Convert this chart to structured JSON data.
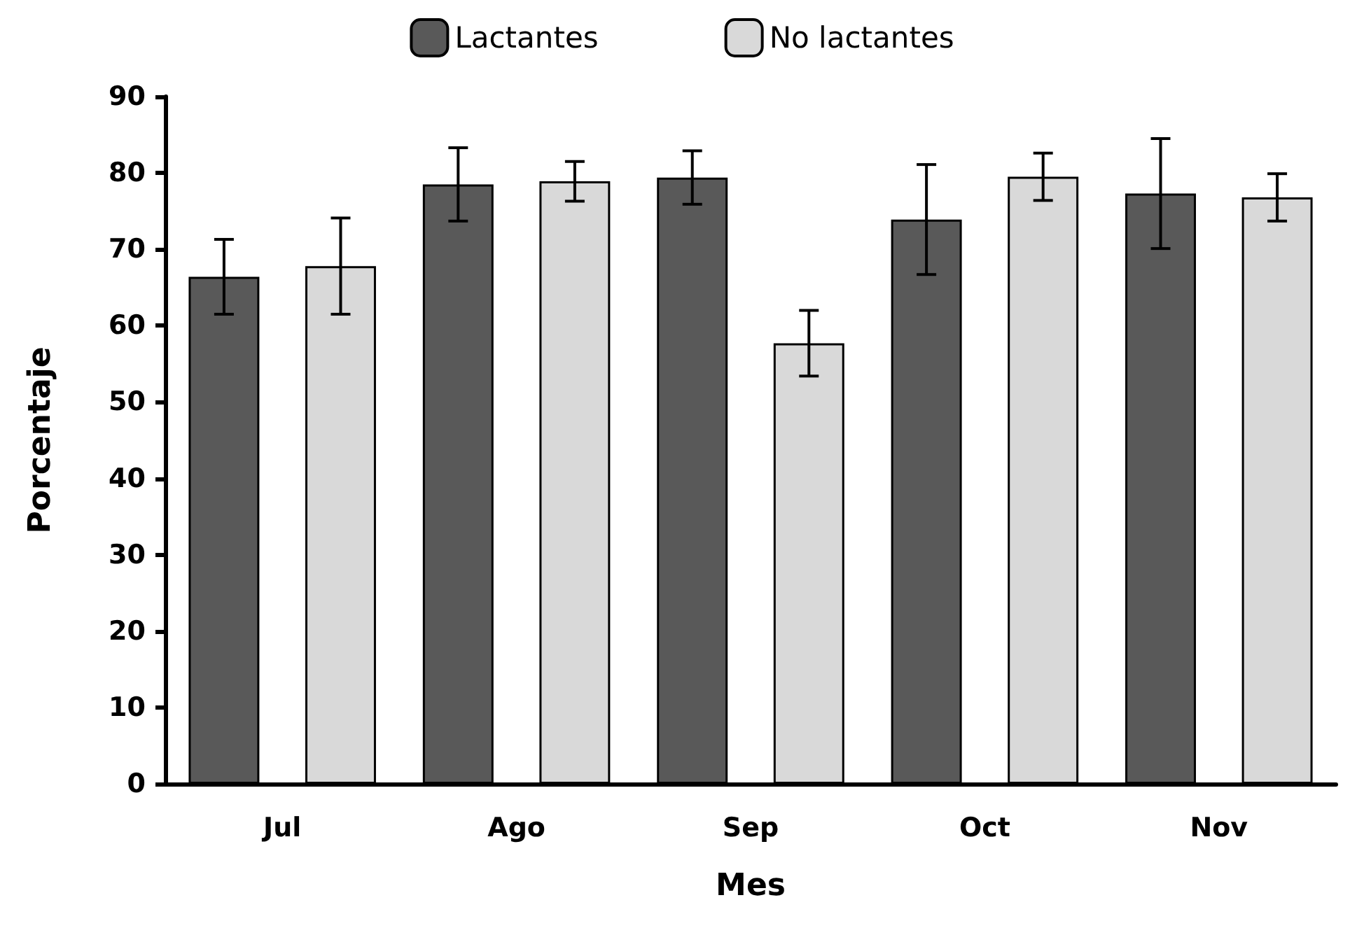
{
  "chart_data": {
    "type": "bar",
    "xlabel": "Mes",
    "ylabel": "Porcentaje",
    "categories": [
      "Jul",
      "Ago",
      "Sep",
      "Oct",
      "Nov"
    ],
    "series": [
      {
        "name": "Lactantes",
        "color": "#595959",
        "values": [
          66.4,
          78.5,
          79.4,
          73.9,
          77.3
        ],
        "errors": [
          4.9,
          4.8,
          3.5,
          7.2,
          7.2
        ]
      },
      {
        "name": "No lactantes",
        "color": "#d9d9d9",
        "values": [
          67.8,
          78.9,
          57.7,
          79.5,
          76.8
        ],
        "errors": [
          6.3,
          2.6,
          4.3,
          3.1,
          3.1
        ]
      }
    ],
    "ylim": [
      0,
      90
    ],
    "yticks": [
      0,
      10,
      20,
      30,
      40,
      50,
      60,
      70,
      80,
      90
    ],
    "grid": false,
    "legend": "top"
  }
}
